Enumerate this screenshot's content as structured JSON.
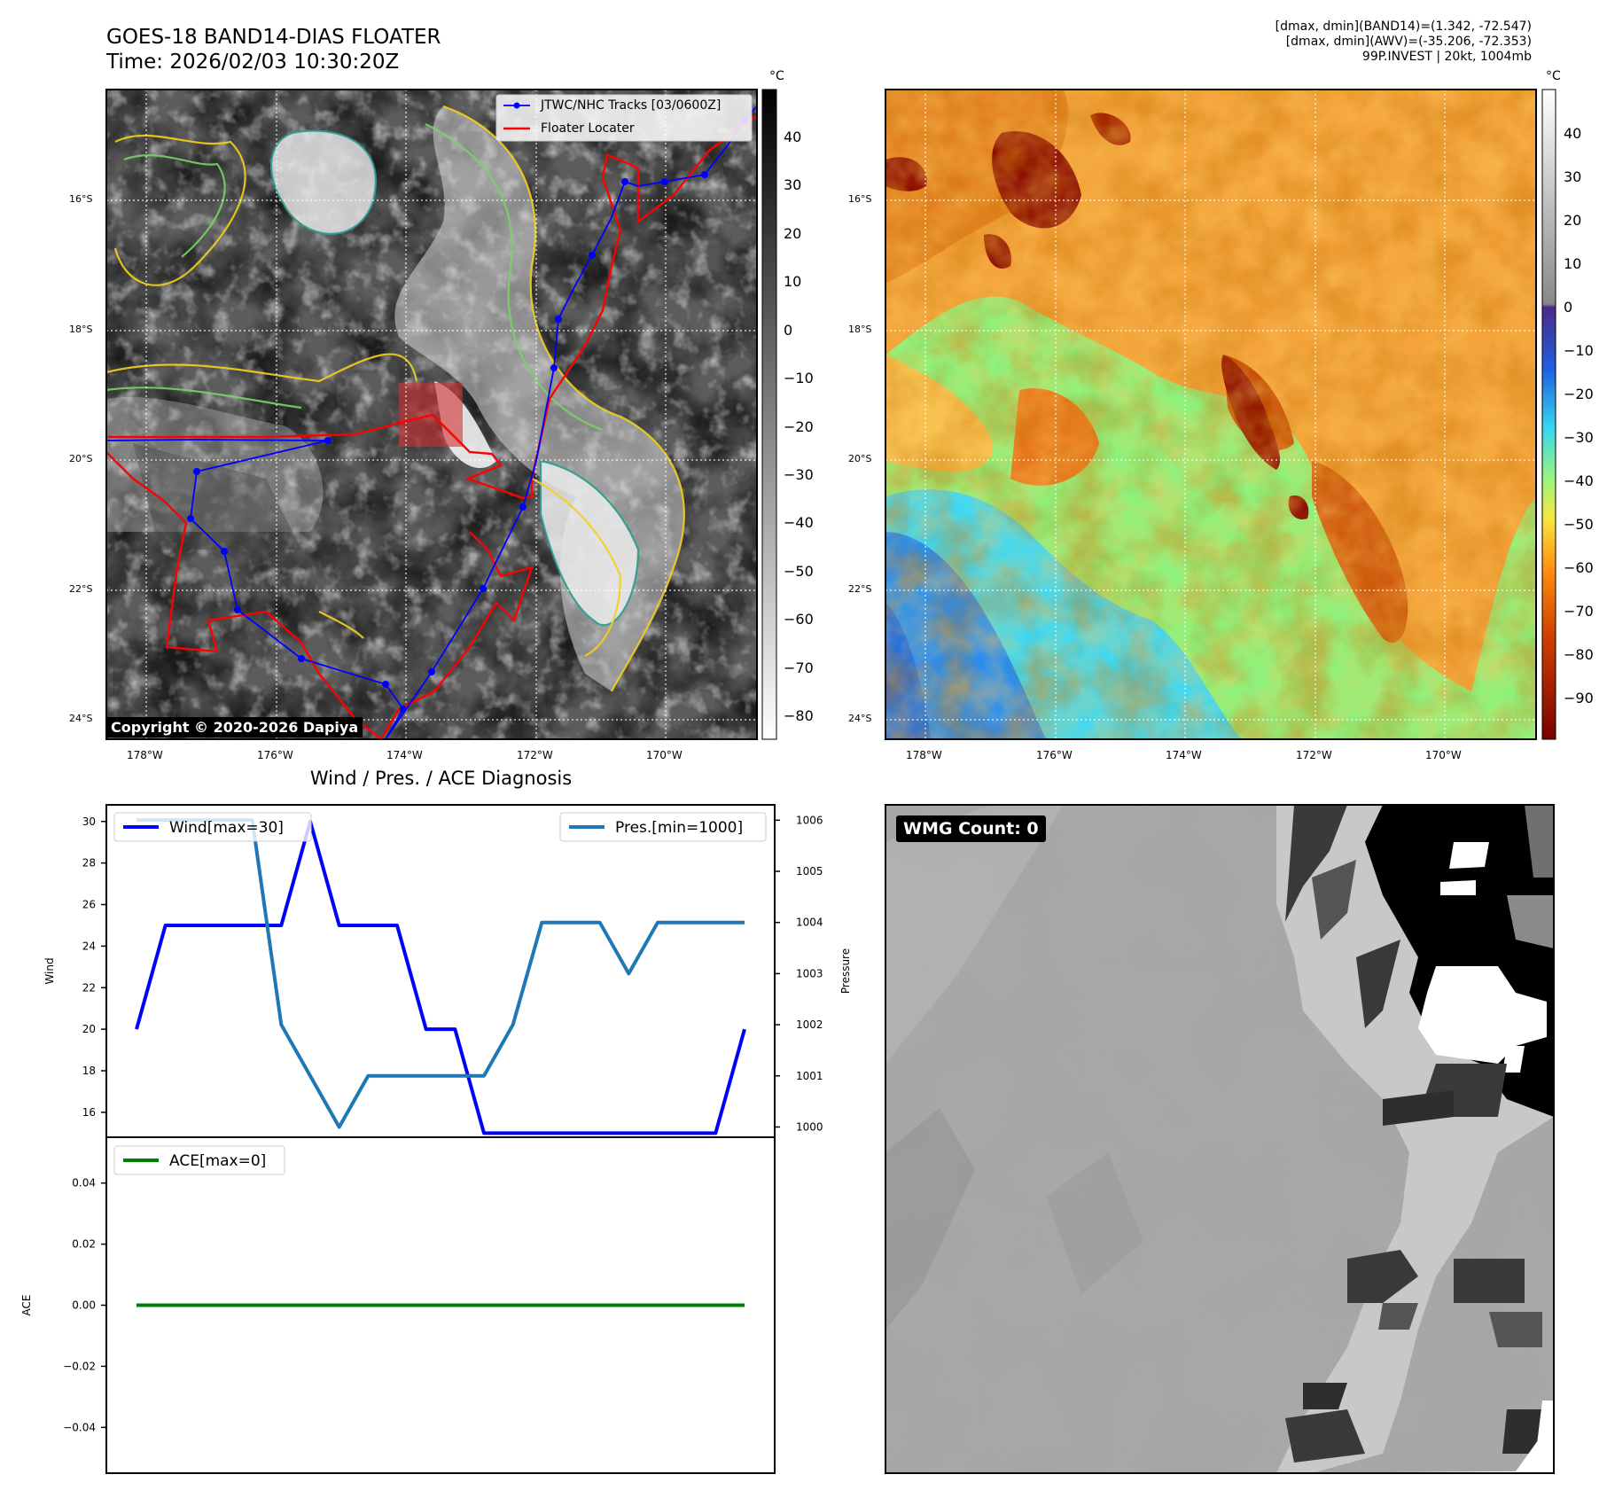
{
  "header": {
    "title_line1": "GOES-18 BAND14-DIAS FLOATER",
    "title_line2": "Time: 2026/02/03 10:30:20Z",
    "info_line1": "[dmax, dmin](BAND14)=(1.342, -72.547)",
    "info_line2": "[dmax, dmin](AWV)=(-35.206, -72.353)",
    "info_line3": "99P.INVEST | 20kt, 1004mb"
  },
  "maps": {
    "lat_labels": [
      "16°S",
      "18°S",
      "20°S",
      "22°S",
      "24°S"
    ],
    "lon_labels": [
      "178°W",
      "176°W",
      "174°W",
      "172°W",
      "170°W"
    ],
    "unit": "°C",
    "left_colorbar_ticks": [
      "40",
      "30",
      "20",
      "10",
      "0",
      "−10",
      "−20",
      "−30",
      "−40",
      "−50",
      "−60",
      "−70",
      "−80"
    ],
    "right_colorbar_ticks": [
      "40",
      "30",
      "20",
      "10",
      "0",
      "−10",
      "−20",
      "−30",
      "−40",
      "−50",
      "−60",
      "−70",
      "−80",
      "−90"
    ],
    "legend_tracks": "JTWC/NHC Tracks [03/0600Z]",
    "legend_floater": "Floater Locater",
    "copyright": "Copyright © 2020-2026 Dapiya",
    "track_color": "#0000ff",
    "floater_color": "#ff0000"
  },
  "diagnosis": {
    "title": "Wind / Pres. / ACE Diagnosis",
    "wmg_label": "WMG Count: 0"
  },
  "chart_data": [
    {
      "type": "line",
      "title": "Wind / Pres. / ACE Diagnosis",
      "ylabel": "Wind",
      "y2label": "Pressure",
      "ylim": [
        14.8,
        30.8
      ],
      "y2lim": [
        999.8,
        1006.3
      ],
      "yticks": [
        "16",
        "18",
        "20",
        "22",
        "24",
        "26",
        "28",
        "30"
      ],
      "y2ticks": [
        "1000",
        "1001",
        "1002",
        "1003",
        "1004",
        "1005",
        "1006"
      ],
      "x": [
        0,
        1,
        2,
        3,
        4,
        5,
        6,
        7,
        8,
        9,
        10,
        11,
        12,
        13,
        14,
        15,
        16,
        17,
        18,
        19,
        20,
        21
      ],
      "series": [
        {
          "name": "Wind[max=30]",
          "color": "#0000ff",
          "axis": "left",
          "values": [
            20,
            25,
            25,
            25,
            25,
            25,
            30,
            25,
            25,
            25,
            20,
            20,
            15,
            15,
            15,
            15,
            15,
            15,
            15,
            15,
            15,
            20
          ]
        },
        {
          "name": "Pres.[min=1000]",
          "color": "#1f77b4",
          "axis": "right",
          "values": [
            1006,
            1006,
            1006,
            1006,
            1006,
            1002,
            1001,
            1000,
            1001,
            1001,
            1001,
            1001,
            1001,
            1002,
            1004,
            1004,
            1004,
            1003,
            1004,
            1004,
            1004,
            1004
          ]
        }
      ]
    },
    {
      "type": "line",
      "ylabel": "ACE",
      "ylim": [
        -0.055,
        0.055
      ],
      "yticks": [
        "0.04",
        "0.02",
        "0.00",
        "−0.02",
        "−0.04"
      ],
      "x": [
        0,
        1,
        2,
        3,
        4,
        5,
        6,
        7,
        8,
        9,
        10,
        11,
        12,
        13,
        14,
        15,
        16,
        17,
        18,
        19,
        20,
        21
      ],
      "series": [
        {
          "name": "ACE[max=0]",
          "color": "#008000",
          "values": [
            0,
            0,
            0,
            0,
            0,
            0,
            0,
            0,
            0,
            0,
            0,
            0,
            0,
            0,
            0,
            0,
            0,
            0,
            0,
            0,
            0,
            0
          ]
        }
      ]
    }
  ]
}
